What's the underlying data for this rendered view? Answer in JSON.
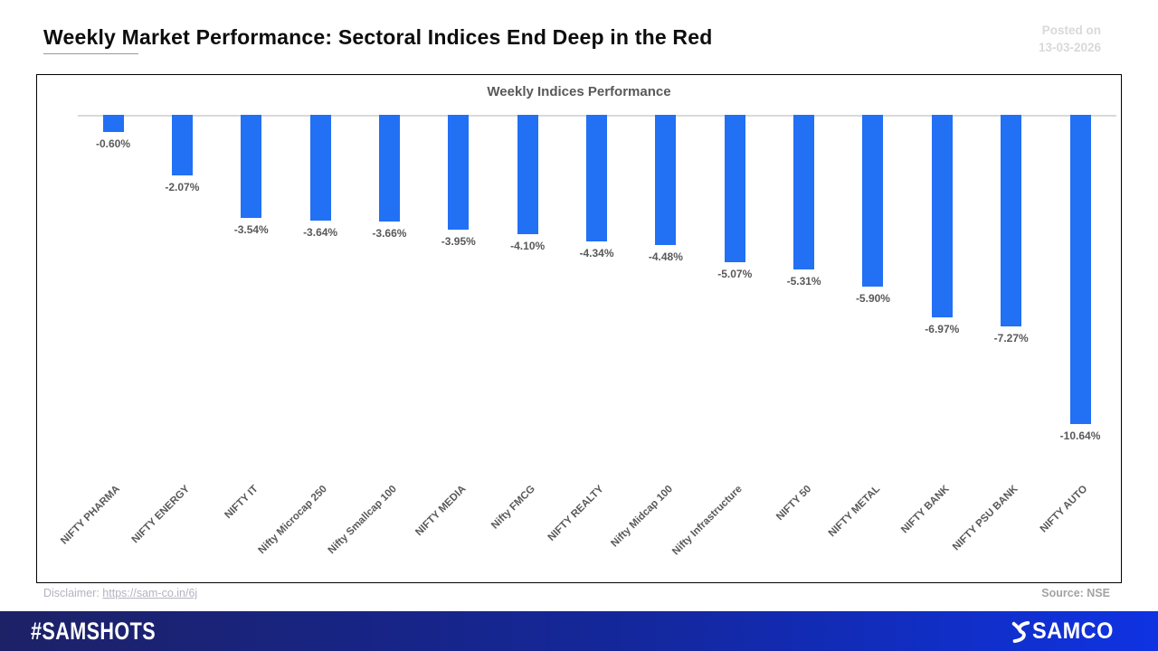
{
  "header": {
    "title": "Weekly Market Performance: Sectoral Indices End Deep in the Red",
    "posted_on_label": "Posted on",
    "posted_on_date": "13-03-2026"
  },
  "chart_data": {
    "type": "bar",
    "title": "Weekly Indices Performance",
    "categories": [
      "NIFTY PHARMA",
      "NIFTY ENERGY",
      "NIFTY IT",
      "Nifty Microcap 250",
      "Nifty Smallcap 100",
      "NIFTY MEDIA",
      "Nifty FMCG",
      "NIFTY REALTY",
      "Nifty Midcap 100",
      "Nifty Infrastructure",
      "NIFTY 50",
      "NIFTY METAL",
      "NIFTY BANK",
      "NIFTY PSU BANK",
      "NIFTY AUTO"
    ],
    "values": [
      -0.6,
      -2.07,
      -3.54,
      -3.64,
      -3.66,
      -3.95,
      -4.1,
      -4.34,
      -4.48,
      -5.07,
      -5.31,
      -5.9,
      -6.97,
      -7.27,
      -10.64
    ],
    "value_labels": [
      "-0.60%",
      "-2.07%",
      "-3.54%",
      "-3.64%",
      "-3.66%",
      "-3.95%",
      "-4.10%",
      "-4.34%",
      "-4.48%",
      "-5.07%",
      "-5.31%",
      "-5.90%",
      "-6.97%",
      "-7.27%",
      "-10.64%"
    ],
    "xlabel": "",
    "ylabel": "",
    "ylim": [
      -11.5,
      0
    ],
    "grid": false,
    "legend": "none",
    "bar_color": "#2270f4",
    "baseline_color": "#d9d9d9",
    "label_color": "#595959"
  },
  "footer": {
    "disclaimer_label": "Disclaimer: ",
    "disclaimer_link": "https://sam-co.in/6j",
    "source": "Source: NSE",
    "brand_hashtag": "#SAMSHOTS",
    "brand_logo_text": "SAMCO"
  },
  "colors": {
    "accent_blue": "#2270f4",
    "footer_gradient_left": "#1d2166",
    "footer_gradient_right": "#0f33e2",
    "muted_text": "#595959",
    "faded_text": "#d9d9d9"
  }
}
